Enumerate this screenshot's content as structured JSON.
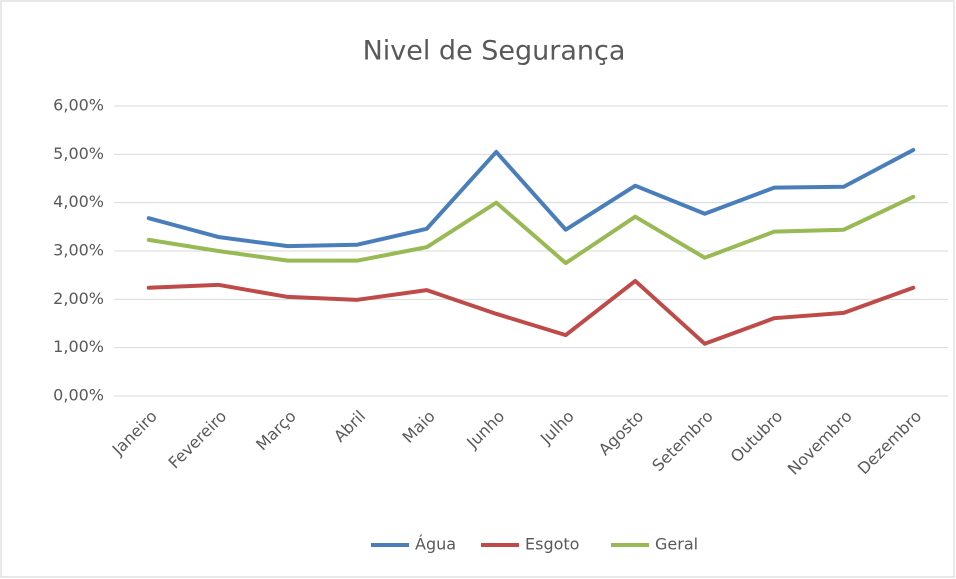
{
  "chart_data": {
    "type": "line",
    "title": "Nivel de Segurança",
    "categories": [
      "Janeiro",
      "Fevereiro",
      "Março",
      "Abril",
      "Maio",
      "Junho",
      "Julho",
      "Agosto",
      "Setembro",
      "Outubro",
      "Novembro",
      "Dezembro"
    ],
    "series": [
      {
        "name": "Água",
        "color": "#4a7ebb",
        "values": [
          3.68,
          3.29,
          3.1,
          3.13,
          3.46,
          5.05,
          3.44,
          4.35,
          3.77,
          4.31,
          4.33,
          5.09
        ]
      },
      {
        "name": "Esgoto",
        "color": "#be4b48",
        "values": [
          2.24,
          2.3,
          2.05,
          1.99,
          2.19,
          1.7,
          1.26,
          2.38,
          1.08,
          1.61,
          1.72,
          2.24
        ]
      },
      {
        "name": "Geral",
        "color": "#98b954",
        "values": [
          3.23,
          3.0,
          2.8,
          2.8,
          3.08,
          4.0,
          2.75,
          3.71,
          2.86,
          3.4,
          3.44,
          4.12
        ]
      }
    ],
    "ylim": [
      0,
      6
    ],
    "yticks": [
      {
        "value": 0,
        "label": "0,00%"
      },
      {
        "value": 1,
        "label": "1,00%"
      },
      {
        "value": 2,
        "label": "2,00%"
      },
      {
        "value": 3,
        "label": "3,00%"
      },
      {
        "value": 4,
        "label": "4,00%"
      },
      {
        "value": 5,
        "label": "5,00%"
      },
      {
        "value": 6,
        "label": "6,00%"
      }
    ],
    "grid": true,
    "legend": "bottom"
  }
}
